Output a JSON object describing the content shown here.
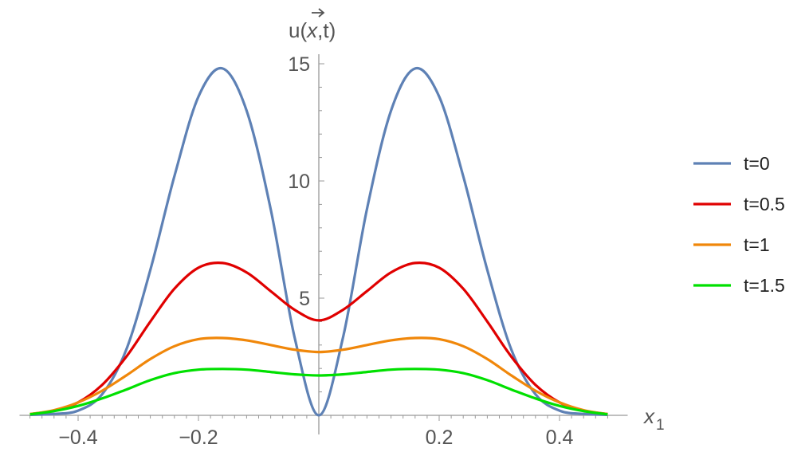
{
  "chart_data": {
    "type": "line",
    "xlabel": "x",
    "xlabel_subscript": "1",
    "ylabel_prefix": "u(",
    "ylabel_vector": "x",
    "ylabel_suffix": ",t)",
    "xlim": [
      -0.5,
      0.5
    ],
    "ylim": [
      0,
      15
    ],
    "x_ticks": [
      -0.4,
      -0.2,
      0.2,
      0.4
    ],
    "x_tick_labels": [
      "−0.4",
      "−0.2",
      "0.2",
      "0.4"
    ],
    "y_ticks": [
      5,
      10,
      15
    ],
    "y_tick_labels": [
      "5",
      "10",
      "15"
    ],
    "grid": false,
    "legend_position": "right",
    "x": [
      -0.48,
      -0.44,
      -0.4,
      -0.36,
      -0.32,
      -0.28,
      -0.24,
      -0.2,
      -0.16,
      -0.12,
      -0.08,
      -0.04,
      0,
      0.04,
      0.08,
      0.12,
      0.16,
      0.2,
      0.24,
      0.28,
      0.32,
      0.36,
      0.4,
      0.44,
      0.48
    ],
    "series": [
      {
        "name": "t=0",
        "color": "#5E81B5",
        "values": [
          0.02,
          0.06,
          0.2,
          0.9,
          2.8,
          6.2,
          10.2,
          13.6,
          14.8,
          13.0,
          8.8,
          3.3,
          0.0,
          3.3,
          8.8,
          13.0,
          14.8,
          13.6,
          10.2,
          6.2,
          2.8,
          0.9,
          0.2,
          0.06,
          0.02
        ]
      },
      {
        "name": "t=0.5",
        "color": "#E00000",
        "values": [
          0.05,
          0.2,
          0.55,
          1.3,
          2.5,
          4.0,
          5.4,
          6.3,
          6.5,
          6.1,
          5.3,
          4.5,
          4.05,
          4.5,
          5.3,
          6.1,
          6.5,
          6.3,
          5.4,
          4.0,
          2.5,
          1.3,
          0.55,
          0.2,
          0.05
        ]
      },
      {
        "name": "t=1",
        "color": "#F0870A",
        "values": [
          0.05,
          0.22,
          0.55,
          1.05,
          1.7,
          2.4,
          2.95,
          3.25,
          3.3,
          3.2,
          3.0,
          2.8,
          2.7,
          2.8,
          3.0,
          3.2,
          3.3,
          3.25,
          2.95,
          2.4,
          1.7,
          1.05,
          0.55,
          0.22,
          0.05
        ]
      },
      {
        "name": "t=1.5",
        "color": "#00E000",
        "values": [
          0.04,
          0.18,
          0.4,
          0.72,
          1.1,
          1.5,
          1.8,
          1.95,
          1.98,
          1.95,
          1.85,
          1.75,
          1.7,
          1.75,
          1.85,
          1.95,
          1.98,
          1.95,
          1.8,
          1.5,
          1.1,
          0.72,
          0.4,
          0.18,
          0.04
        ]
      }
    ]
  }
}
